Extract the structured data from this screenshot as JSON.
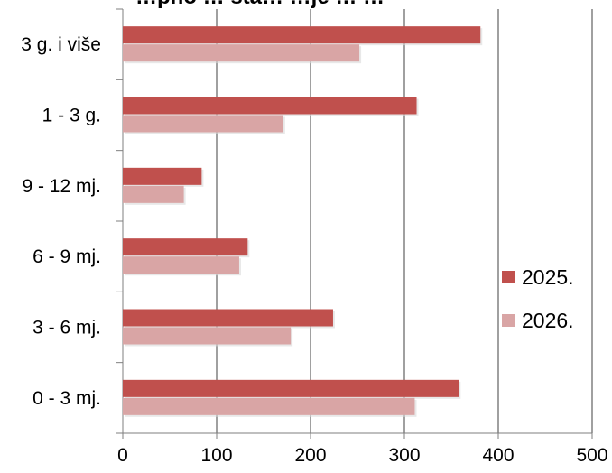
{
  "chart_data": {
    "type": "bar",
    "orientation": "horizontal",
    "title": "…pno … sta… …je … …",
    "categories": [
      "0 - 3 mj.",
      "3 - 6 mj.",
      "6 - 9 mj.",
      "9 - 12 mj.",
      "1 - 3 g.",
      "3 g. i više"
    ],
    "series": [
      {
        "name": "2025.",
        "color": "#c0504d",
        "values": [
          358,
          224,
          133,
          84,
          313,
          381
        ]
      },
      {
        "name": "2026.",
        "color": "#d9a5a5",
        "values": [
          311,
          179,
          124,
          65,
          171,
          252
        ]
      }
    ],
    "xlim": [
      0,
      500
    ],
    "xticks": [
      0,
      100,
      200,
      300,
      400,
      500
    ],
    "grid": "vertical",
    "legend_position": "right"
  }
}
